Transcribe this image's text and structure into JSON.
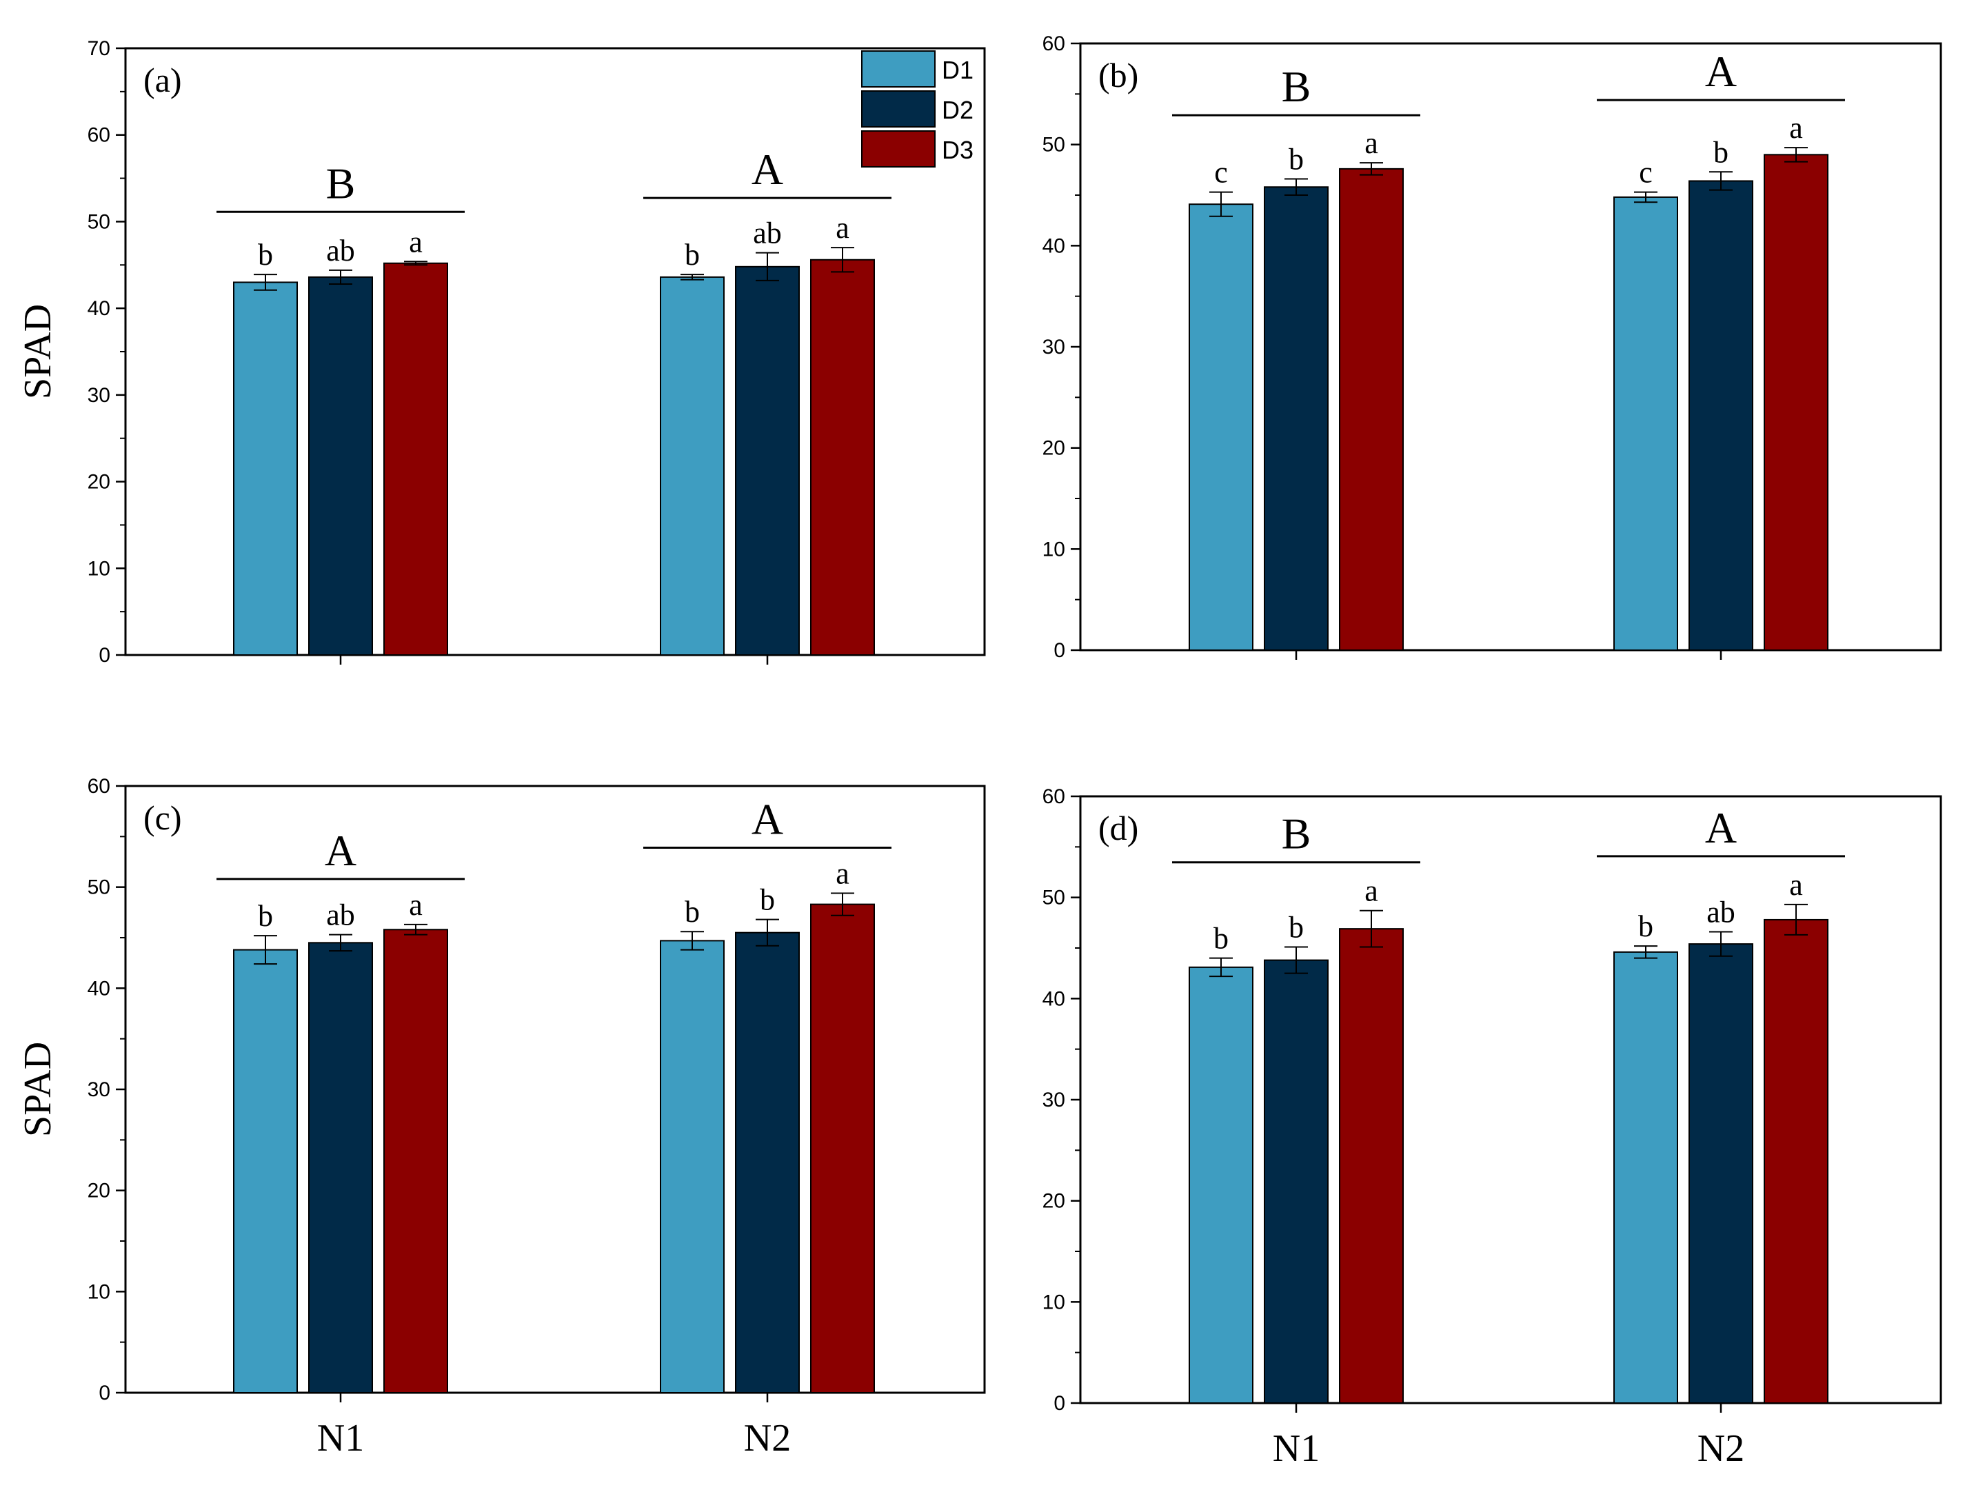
{
  "colors": {
    "D1": "#3e9dc1",
    "D2": "#012a48",
    "D3": "#8b0000"
  },
  "legend": [
    "D1",
    "D2",
    "D3"
  ],
  "chart_data": [
    {
      "type": "bar",
      "panel": "(a)",
      "ylabel": "SPAD",
      "categories": [
        "",
        ""
      ],
      "ylim": [
        0,
        70
      ],
      "yticks": [
        0,
        10,
        20,
        30,
        40,
        50,
        60,
        70
      ],
      "series": [
        {
          "name": "D1",
          "values": [
            43.0,
            43.6
          ],
          "errors": [
            0.9,
            0.3
          ]
        },
        {
          "name": "D2",
          "values": [
            43.6,
            44.8
          ],
          "errors": [
            0.8,
            1.6
          ]
        },
        {
          "name": "D3",
          "values": [
            45.2,
            45.6
          ],
          "errors": [
            0.2,
            1.4
          ]
        }
      ],
      "letters": [
        [
          "b",
          "ab",
          "a"
        ],
        [
          "b",
          "ab",
          "a"
        ]
      ],
      "group_letters": [
        "B",
        "A"
      ]
    },
    {
      "type": "bar",
      "panel": "(b)",
      "ylabel": "",
      "categories": [
        "",
        ""
      ],
      "ylim": [
        0,
        60
      ],
      "yticks": [
        0,
        10,
        20,
        30,
        40,
        50,
        60
      ],
      "series": [
        {
          "name": "D1",
          "values": [
            44.1,
            44.8
          ],
          "errors": [
            1.2,
            0.5
          ]
        },
        {
          "name": "D2",
          "values": [
            45.8,
            46.4
          ],
          "errors": [
            0.8,
            0.9
          ]
        },
        {
          "name": "D3",
          "values": [
            47.6,
            49.0
          ],
          "errors": [
            0.6,
            0.7
          ]
        }
      ],
      "letters": [
        [
          "c",
          "b",
          "a"
        ],
        [
          "c",
          "b",
          "a"
        ]
      ],
      "group_letters": [
        "B",
        "A"
      ]
    },
    {
      "type": "bar",
      "panel": "(c)",
      "ylabel": "SPAD",
      "categories": [
        "N1",
        "N2"
      ],
      "ylim": [
        0,
        60
      ],
      "yticks": [
        0,
        10,
        20,
        30,
        40,
        50,
        60
      ],
      "series": [
        {
          "name": "D1",
          "values": [
            43.8,
            44.7
          ],
          "errors": [
            1.4,
            0.9
          ]
        },
        {
          "name": "D2",
          "values": [
            44.5,
            45.5
          ],
          "errors": [
            0.8,
            1.3
          ]
        },
        {
          "name": "D3",
          "values": [
            45.8,
            48.3
          ],
          "errors": [
            0.5,
            1.1
          ]
        }
      ],
      "letters": [
        [
          "b",
          "ab",
          "a"
        ],
        [
          "b",
          "b",
          "a"
        ]
      ],
      "group_letters": [
        "A",
        "A"
      ]
    },
    {
      "type": "bar",
      "panel": "(d)",
      "ylabel": "",
      "categories": [
        "N1",
        "N2"
      ],
      "ylim": [
        0,
        60
      ],
      "yticks": [
        0,
        10,
        20,
        30,
        40,
        50,
        60
      ],
      "series": [
        {
          "name": "D1",
          "values": [
            43.1,
            44.6
          ],
          "errors": [
            0.9,
            0.6
          ]
        },
        {
          "name": "D2",
          "values": [
            43.8,
            45.4
          ],
          "errors": [
            1.3,
            1.2
          ]
        },
        {
          "name": "D3",
          "values": [
            46.9,
            47.8
          ],
          "errors": [
            1.8,
            1.5
          ]
        }
      ],
      "letters": [
        [
          "b",
          "b",
          "a"
        ],
        [
          "b",
          "ab",
          "a"
        ]
      ],
      "group_letters": [
        "B",
        "A"
      ]
    }
  ]
}
